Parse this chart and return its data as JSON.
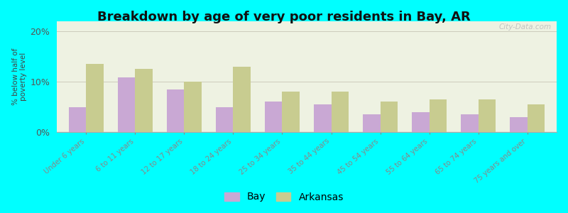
{
  "title": "Breakdown by age of very poor residents in Bay, AR",
  "ylabel": "% below half of\npoverty level",
  "categories": [
    "Under 6 years",
    "6 to 11 years",
    "12 to 17 years",
    "18 to 24 years",
    "25 to 34 years",
    "35 to 44 years",
    "45 to 54 years",
    "55 to 64 years",
    "65 to 74 years",
    "75 years and over"
  ],
  "bay_values": [
    5.0,
    10.8,
    8.5,
    5.0,
    6.0,
    5.5,
    3.5,
    4.0,
    3.5,
    3.0
  ],
  "arkansas_values": [
    13.5,
    12.5,
    10.0,
    13.0,
    8.0,
    8.0,
    6.0,
    6.5,
    6.5,
    5.5
  ],
  "bay_color": "#c9a8d4",
  "arkansas_color": "#c8cc90",
  "background_outer": "#00ffff",
  "background_plot": "#eef2e2",
  "ylim": [
    0,
    22
  ],
  "yticks": [
    0,
    10,
    20
  ],
  "ytick_labels": [
    "0%",
    "10%",
    "20%"
  ],
  "title_fontsize": 13,
  "axis_fontsize": 9,
  "legend_fontsize": 10,
  "bar_width": 0.35,
  "watermark": "City-Data.com"
}
